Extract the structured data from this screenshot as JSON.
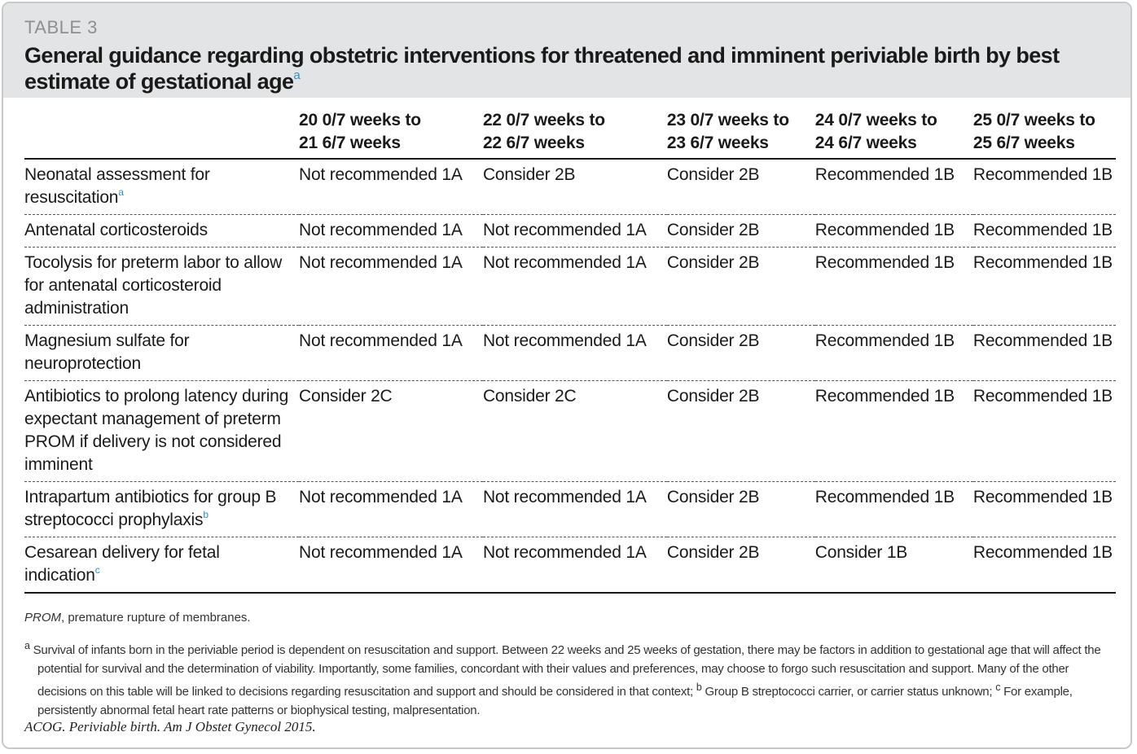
{
  "table_label": "TABLE 3",
  "title": "General guidance regarding obstetric interventions for threatened and imminent periviable birth by best estimate of gestational age",
  "title_footnote": "a",
  "columns": [
    {
      "line1": "",
      "line2": ""
    },
    {
      "line1": "20 0/7 weeks to",
      "line2": "21 6/7 weeks"
    },
    {
      "line1": "22 0/7 weeks to",
      "line2": "22 6/7 weeks"
    },
    {
      "line1": "23 0/7 weeks to",
      "line2": "23 6/7 weeks"
    },
    {
      "line1": "24 0/7 weeks to",
      "line2": "24 6/7 weeks"
    },
    {
      "line1": "25 0/7 weeks to",
      "line2": "25 6/7 weeks"
    }
  ],
  "rows": [
    {
      "label": "Neonatal assessment for resuscitation",
      "footnote": "a",
      "cells": [
        "Not recommended 1A",
        "Consider 2B",
        "Consider 2B",
        "Recommended 1B",
        "Recommended 1B"
      ]
    },
    {
      "label": "Antenatal corticosteroids",
      "footnote": "",
      "cells": [
        "Not recommended 1A",
        "Not recommended 1A",
        "Consider 2B",
        "Recommended 1B",
        "Recommended 1B"
      ]
    },
    {
      "label": "Tocolysis for preterm labor to allow for antenatal corticosteroid administration",
      "footnote": "",
      "cells": [
        "Not recommended 1A",
        "Not recommended 1A",
        "Consider 2B",
        "Recommended 1B",
        "Recommended 1B"
      ]
    },
    {
      "label": "Magnesium sulfate for neuroprotection",
      "footnote": "",
      "cells": [
        "Not recommended 1A",
        "Not recommended 1A",
        "Consider 2B",
        "Recommended 1B",
        "Recommended 1B"
      ]
    },
    {
      "label": "Antibiotics to prolong latency during expectant management of preterm PROM if delivery is not considered imminent",
      "footnote": "",
      "cells": [
        "Consider 2C",
        "Consider 2C",
        "Consider 2B",
        "Recommended 1B",
        "Recommended 1B"
      ]
    },
    {
      "label": "Intrapartum antibiotics for group B streptococci prophylaxis",
      "footnote": "b",
      "cells": [
        "Not recommended 1A",
        "Not recommended 1A",
        "Consider 2B",
        "Recommended 1B",
        "Recommended 1B"
      ]
    },
    {
      "label": "Cesarean delivery for fetal indication",
      "footnote": "c",
      "cells": [
        "Not recommended 1A",
        "Not recommended 1A",
        "Consider 2B",
        "Consider 1B",
        "Recommended 1B"
      ]
    }
  ],
  "abbreviation": {
    "term": "PROM",
    "definition": ", premature rupture of membranes."
  },
  "footnotes": {
    "a_mark": "a",
    "a_text": "Survival of infants born in the periviable period is dependent on resuscitation and support. Between 22 weeks and 25 weeks of gestation, there may be factors in addition to gestational age that will affect the potential for survival and the determination of viability. Importantly, some families, concordant with their values and preferences, may choose to forgo such resuscitation and support. Many of the other decisions on this table will be linked to decisions regarding resuscitation and support and should be considered in that context;",
    "b_mark": "b",
    "b_text": "Group B streptococci carrier, or carrier status unknown;",
    "c_mark": "c",
    "c_text": "For example, persistently abnormal fetal heart rate patterns or biophysical testing, malpresentation."
  },
  "source": "ACOG. Periviable birth. Am J Obstet Gynecol 2015.",
  "colors": {
    "header_bg": "#e3e4e6",
    "label_gray": "#8d8f92",
    "footnote_blue": "#2a93c4"
  }
}
